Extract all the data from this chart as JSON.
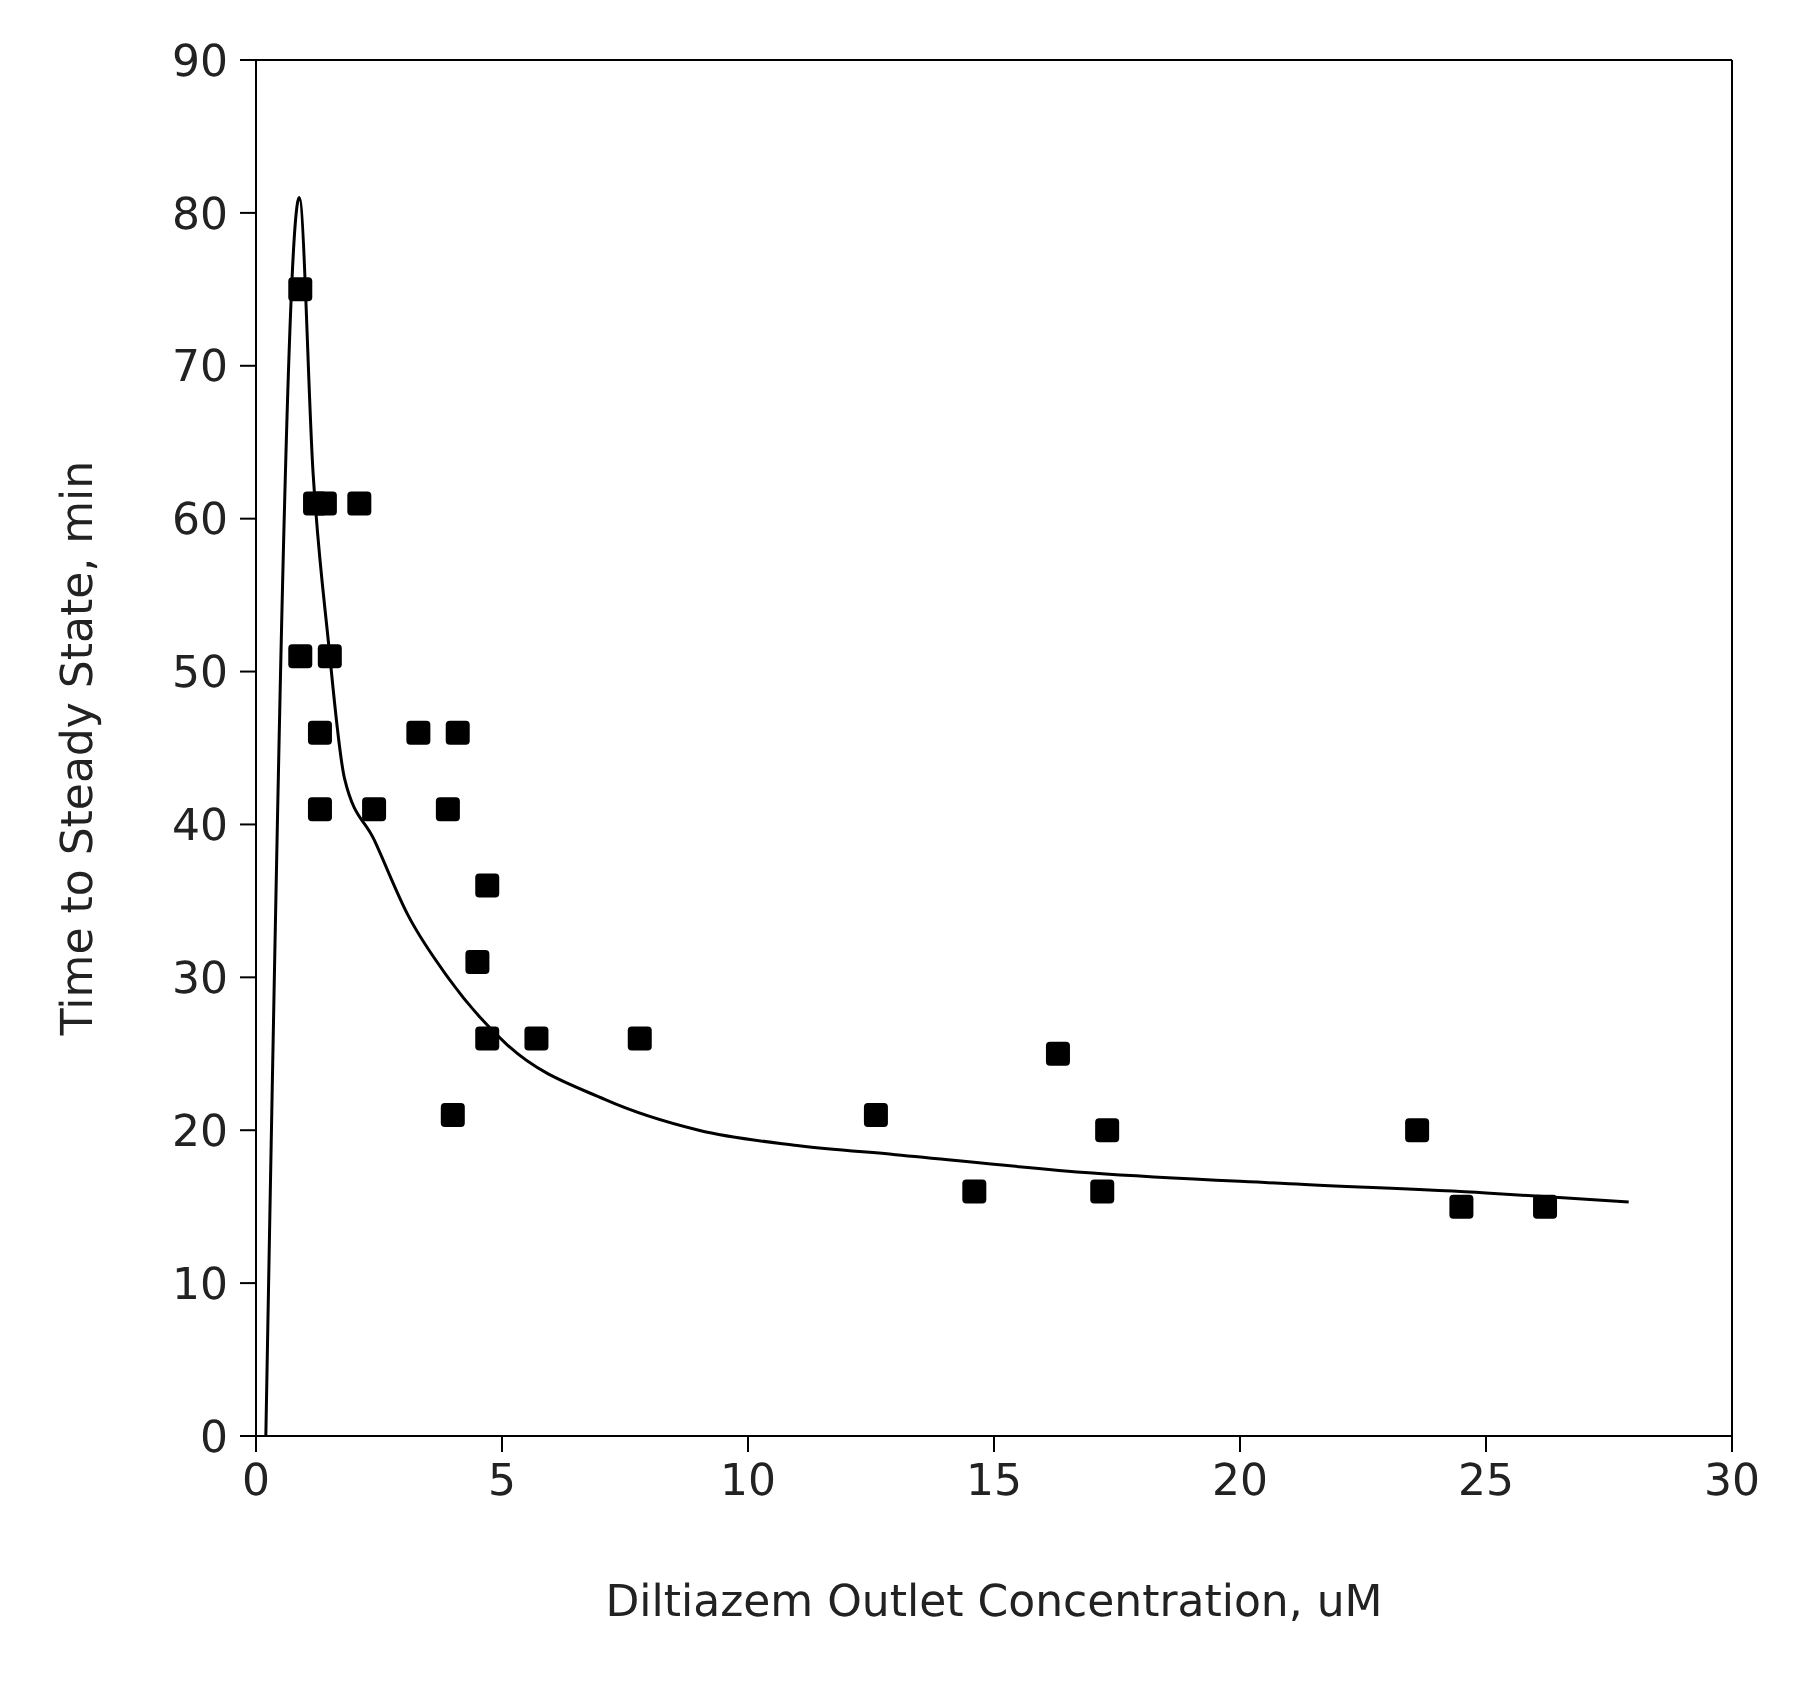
{
  "chart_data": {
    "type": "scatter",
    "xlabel": "Diltiazem Outlet Concentration, uM",
    "ylabel": "Time to Steady State, min",
    "xlim": [
      0,
      30
    ],
    "ylim": [
      0,
      90
    ],
    "xticks": [
      0,
      5,
      10,
      15,
      20,
      25,
      30
    ],
    "yticks": [
      0,
      10,
      20,
      30,
      40,
      50,
      60,
      70,
      80,
      90
    ],
    "series": [
      {
        "color": "#000000",
        "marker": "square",
        "x": [
          0.9,
          0.9,
          1.2,
          1.4,
          1.3,
          1.3,
          1.5,
          2.1,
          2.4,
          3.3,
          4.1,
          3.9,
          4.7,
          4.5,
          4.7,
          5.7,
          7.8,
          4.0,
          12.6,
          14.6,
          16.3,
          17.3,
          17.2,
          23.6,
          24.5,
          26.2
        ],
        "values": [
          75,
          51,
          61,
          61,
          46,
          41,
          51,
          61,
          41,
          46,
          46,
          41,
          36,
          31,
          26,
          26,
          26,
          21,
          21,
          16,
          25,
          20,
          16,
          20,
          15,
          15
        ]
      },
      {
        "type": "line",
        "color": "#000000",
        "marker": "none",
        "line_style": "solid",
        "x": [
          0.2,
          0.88,
          1.16,
          1.47,
          1.8,
          2.4,
          3.1,
          3.9,
          5.1,
          7.1,
          9.0,
          11.0,
          13.0,
          17.0,
          21.0,
          25.0,
          27.9
        ],
        "values": [
          0,
          81,
          63,
          52,
          43,
          39,
          34,
          30,
          25.6,
          22,
          20,
          19,
          18.4,
          17.2,
          16.5,
          15.9,
          15.3
        ]
      }
    ]
  }
}
